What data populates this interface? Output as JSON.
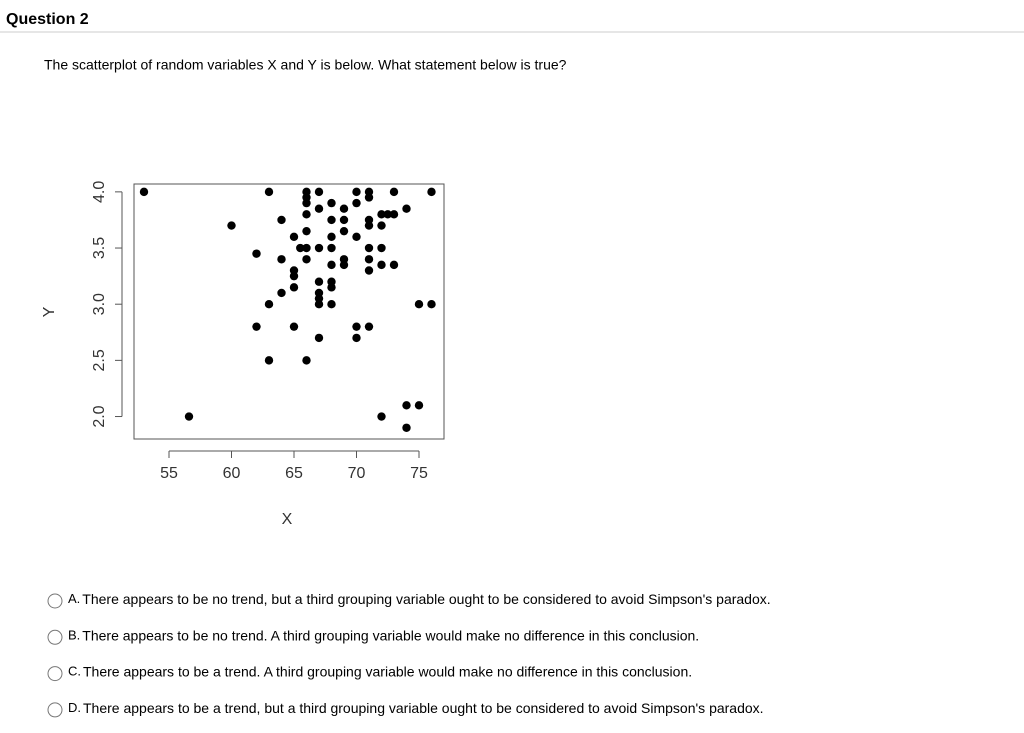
{
  "header": {
    "title": "Question 2"
  },
  "prompt": "The scatterplot of random variables X and Y is below.  What statement below is true?",
  "chart_data": {
    "type": "scatter",
    "x_label": "X",
    "y_label": "Y",
    "color": "#000000",
    "x": [
      53,
      56.6,
      60,
      62,
      62,
      63,
      63,
      63,
      64,
      64,
      64,
      65,
      65,
      65,
      65,
      65,
      65.5,
      66,
      66,
      66,
      66,
      66,
      66,
      66,
      66,
      67,
      67,
      67,
      67,
      67,
      67,
      67,
      67,
      68,
      68,
      68,
      68,
      68,
      68,
      68,
      68,
      69,
      69,
      69,
      69,
      69,
      70,
      70,
      70,
      70,
      70,
      71,
      71,
      71,
      71,
      71,
      71,
      71,
      71,
      72,
      72,
      72,
      72,
      72,
      72.5,
      73,
      73,
      73,
      74,
      74,
      74,
      75,
      75,
      76,
      76
    ],
    "values": [
      4.0,
      2.0,
      3.7,
      3.45,
      2.8,
      4.0,
      3.0,
      2.5,
      3.1,
      3.75,
      3.4,
      3.6,
      3.3,
      3.25,
      3.15,
      2.8,
      3.5,
      4.0,
      3.95,
      3.9,
      3.8,
      3.65,
      3.5,
      3.4,
      2.5,
      4.0,
      3.85,
      3.5,
      3.2,
      3.1,
      3.05,
      3.0,
      2.7,
      3.9,
      3.75,
      3.6,
      3.5,
      3.35,
      3.2,
      3.15,
      3.0,
      3.85,
      3.65,
      3.4,
      3.35,
      3.75,
      4.0,
      3.9,
      3.6,
      2.8,
      2.7,
      4.0,
      3.95,
      3.75,
      3.7,
      3.5,
      3.4,
      3.3,
      2.8,
      3.8,
      3.7,
      3.5,
      3.35,
      2.0,
      3.8,
      3.8,
      4.0,
      3.35,
      3.85,
      2.1,
      1.9,
      2.1,
      3.0,
      3.0,
      4.0
    ],
    "xlim": [
      52.2,
      77
    ],
    "ylim": [
      1.8,
      4.07
    ],
    "xticks": [
      55,
      60,
      65,
      70,
      75
    ],
    "yticks": [
      {
        "value": 2,
        "label": "2.0"
      },
      2.5,
      {
        "value": 3,
        "label": "3.0"
      },
      3.5,
      {
        "value": 4,
        "label": "4.0"
      }
    ]
  },
  "options": [
    {
      "letter": "A.",
      "text": "There appears to be no trend, but a third grouping variable ought to be considered to avoid Simpson's paradox."
    },
    {
      "letter": "B.",
      "text": "There appears to be no trend.  A third grouping variable would make no difference in this conclusion."
    },
    {
      "letter": "C.",
      "text": "There appears to be a trend.  A third grouping variable would make no difference in this conclusion."
    },
    {
      "letter": "D.",
      "text": "There appears to be a trend, but a third grouping variable ought to be considered to avoid Simpson's paradox."
    }
  ]
}
